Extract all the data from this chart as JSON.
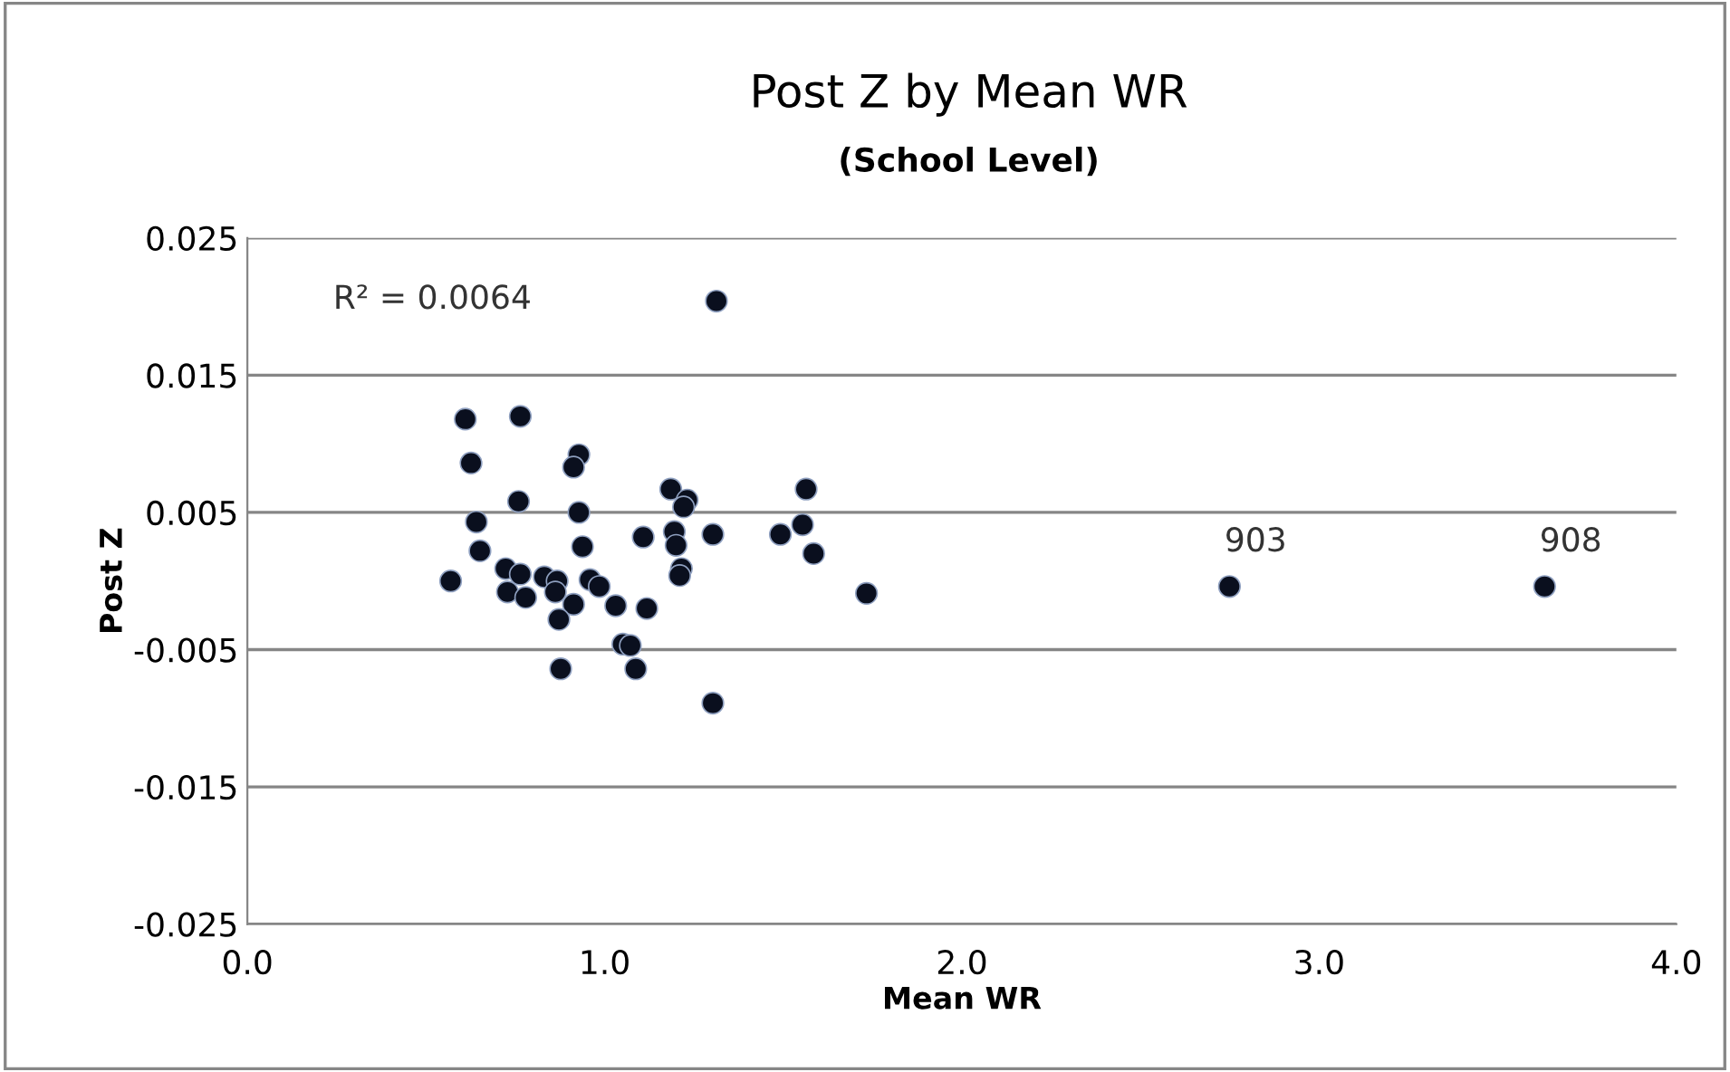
{
  "chart_data": {
    "type": "scatter",
    "title": "Post Z by Mean WR",
    "subtitle": "(School Level)",
    "xlabel": "Mean WR",
    "ylabel": "Post Z",
    "x": [
      1.313,
      0.61,
      0.764,
      0.626,
      0.928,
      0.913,
      0.759,
      0.641,
      0.928,
      1.185,
      1.231,
      1.221,
      1.564,
      1.303,
      1.492,
      1.554,
      1.585,
      0.651,
      0.938,
      1.108,
      1.195,
      1.2,
      1.215,
      1.21,
      0.569,
      0.723,
      0.764,
      0.728,
      0.779,
      0.831,
      0.867,
      0.862,
      0.913,
      0.872,
      0.959,
      0.985,
      1.031,
      1.118,
      1.051,
      1.072,
      0.877,
      1.087,
      1.303,
      1.733,
      2.749,
      3.631
    ],
    "values": [
      0.0204,
      0.0118,
      0.012,
      0.0086,
      0.0092,
      0.0083,
      0.0058,
      0.0043,
      0.005,
      0.0067,
      0.0059,
      0.0054,
      0.0067,
      0.0034,
      0.0034,
      0.0041,
      0.002,
      0.0022,
      0.0025,
      0.0032,
      0.0036,
      0.0026,
      0.0009,
      0.0004,
      0.0,
      0.0009,
      0.0005,
      -0.0008,
      -0.0012,
      0.0003,
      0.0,
      -0.0008,
      -0.0017,
      -0.0028,
      0.0001,
      -0.0004,
      -0.0018,
      -0.002,
      -0.0046,
      -0.0047,
      -0.0064,
      -0.0064,
      -0.0089,
      -0.0009,
      -0.0004,
      -0.0004
    ],
    "color": "#0a0f1e",
    "marker": "circle",
    "xlim": [
      0,
      4
    ],
    "xticks": [
      {
        "value": 0,
        "label": "0.0"
      },
      {
        "value": 1,
        "label": "1.0"
      },
      {
        "value": 2,
        "label": "2.0"
      },
      {
        "value": 3,
        "label": "3.0"
      },
      {
        "value": 4,
        "label": "4.0"
      }
    ],
    "ylim": [
      -0.025,
      0.025
    ],
    "yticks": [
      -0.025,
      -0.015,
      -0.005,
      0.005,
      0.015,
      0.025
    ],
    "grid": "y",
    "annotations": [
      "R² = 0.0064",
      {
        "text": "903",
        "x": 2.749,
        "y": -0.0004
      },
      {
        "text": "908",
        "x": 3.631,
        "y": -0.0004
      }
    ]
  }
}
